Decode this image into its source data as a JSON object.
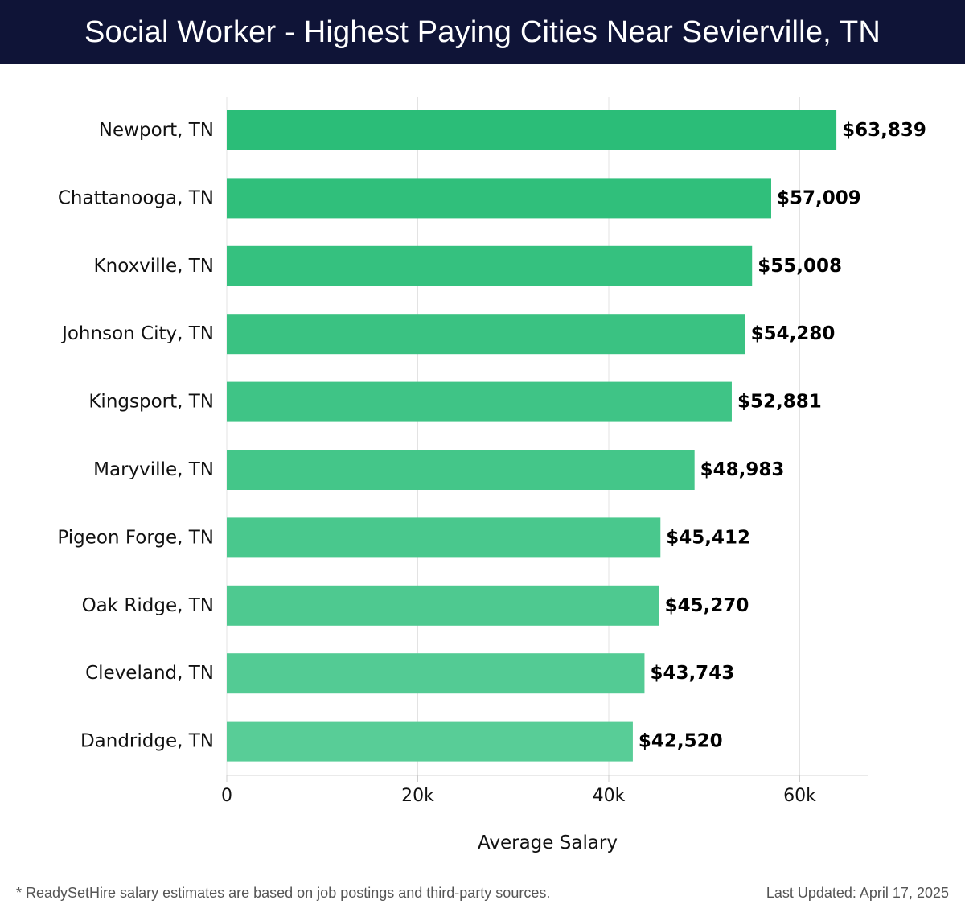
{
  "header": {
    "title": "Social Worker - Highest Paying Cities Near Sevierville, TN"
  },
  "chart_data": {
    "type": "bar",
    "orientation": "horizontal",
    "categories": [
      "Newport, TN",
      "Chattanooga, TN",
      "Knoxville, TN",
      "Johnson City, TN",
      "Kingsport, TN",
      "Maryville, TN",
      "Pigeon Forge, TN",
      "Oak Ridge, TN",
      "Cleveland, TN",
      "Dandridge, TN"
    ],
    "values": [
      63839,
      57009,
      55008,
      54280,
      52881,
      48983,
      45412,
      45270,
      43743,
      42520
    ],
    "value_labels": [
      "$63,839",
      "$57,009",
      "$55,008",
      "$54,280",
      "$52,881",
      "$48,983",
      "$45,412",
      "$45,270",
      "$43,743",
      "$42,520"
    ],
    "xlabel": "Average Salary",
    "ylabel": "",
    "xlim": [
      0,
      67200
    ],
    "xticks": [
      0,
      20000,
      40000,
      60000
    ],
    "xtick_labels": [
      "0",
      "20k",
      "40k",
      "60k"
    ],
    "grid": true,
    "bar_color_start": "#2bbd78",
    "bar_color_end": "#58cd97"
  },
  "footer": {
    "note": "* ReadySetHire salary estimates are based on job postings and third-party sources.",
    "updated": "Last Updated: April 17, 2025"
  }
}
